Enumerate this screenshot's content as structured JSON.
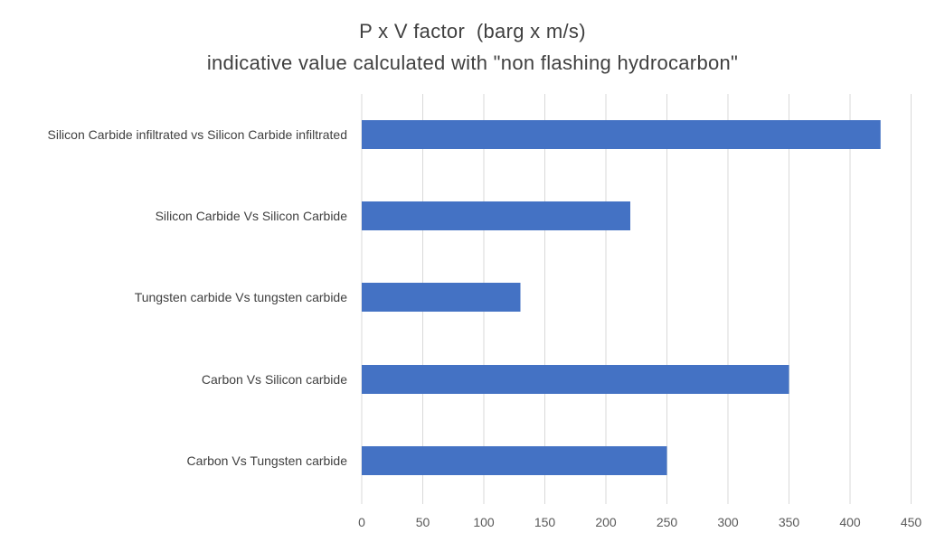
{
  "chart_data": {
    "type": "bar",
    "orientation": "horizontal",
    "title": "P x V factor  (barg x m/s)",
    "subtitle": "indicative value calculated with \"non flashing hydrocarbon\"",
    "categories": [
      "Silicon Carbide infiltrated vs Silicon Carbide infiltrated",
      "Silicon Carbide Vs Silicon Carbide",
      "Tungsten carbide Vs tungsten carbide",
      "Carbon Vs Silicon carbide",
      "Carbon Vs Tungsten carbide"
    ],
    "values": [
      425,
      220,
      130,
      350,
      250
    ],
    "xlabel": "",
    "ylabel": "",
    "xlim": [
      0,
      450
    ],
    "xticks": [
      0,
      50,
      100,
      150,
      200,
      250,
      300,
      350,
      400,
      450
    ],
    "grid": true,
    "legend": "none",
    "colors": {
      "bar": "#4472c4",
      "grid": "#d9d9d9",
      "text": "#404040"
    }
  }
}
